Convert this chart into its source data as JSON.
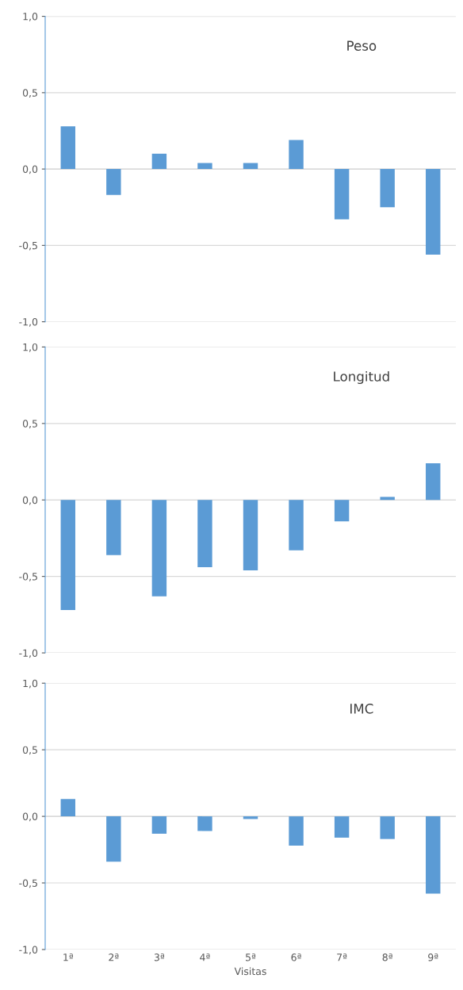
{
  "chart_data": [
    {
      "type": "bar",
      "title": "Peso",
      "categories": [
        null,
        null,
        null,
        null,
        null,
        null,
        null,
        null,
        null
      ],
      "grid": "y",
      "color": "#5b9bd5",
      "values": [
        0.28,
        -0.17,
        0.1,
        0.04,
        0.04,
        0.19,
        -0.33,
        -0.25,
        -0.56
      ],
      "ylim": [
        -1,
        1
      ],
      "yticks": [
        {
          "value": -1,
          "label": "-1,0"
        },
        {
          "value": -0.5,
          "label": "-0,5"
        },
        {
          "value": 0,
          "label": "0,0"
        },
        {
          "value": 0.5,
          "label": "0,5"
        },
        {
          "value": 1,
          "label": "1,0"
        }
      ]
    },
    {
      "type": "bar",
      "title": "Longitud",
      "categories": [
        null,
        null,
        null,
        null,
        null,
        null,
        null,
        null,
        null
      ],
      "grid": "y",
      "color": "#5b9bd5",
      "values": [
        -0.72,
        -0.36,
        -0.63,
        -0.44,
        -0.46,
        -0.33,
        -0.14,
        0.02,
        0.24
      ],
      "ylim": [
        -1,
        1
      ],
      "yticks": [
        {
          "value": -1,
          "label": "-1,0"
        },
        {
          "value": -0.5,
          "label": "-0,5"
        },
        {
          "value": 0,
          "label": "0,0"
        },
        {
          "value": 0.5,
          "label": "0,5"
        },
        {
          "value": 1,
          "label": "1,0"
        }
      ]
    },
    {
      "type": "bar",
      "title": "IMC",
      "xlabel": "Visitas",
      "categories": [
        "1ª",
        "2ª",
        "3ª",
        "4ª",
        "5ª",
        "6ª",
        "7ª",
        "8ª",
        "9ª"
      ],
      "grid": "y",
      "color": "#5b9bd5",
      "values": [
        0.13,
        -0.34,
        -0.13,
        -0.11,
        -0.02,
        -0.22,
        -0.16,
        -0.17,
        -0.58
      ],
      "ylim": [
        -1,
        1
      ],
      "yticks": [
        {
          "value": -1,
          "label": "-1,0"
        },
        {
          "value": -0.5,
          "label": "-0,5"
        },
        {
          "value": 0,
          "label": "0,0"
        },
        {
          "value": 0.5,
          "label": "0,5"
        },
        {
          "value": 1,
          "label": "1,0"
        }
      ]
    }
  ]
}
